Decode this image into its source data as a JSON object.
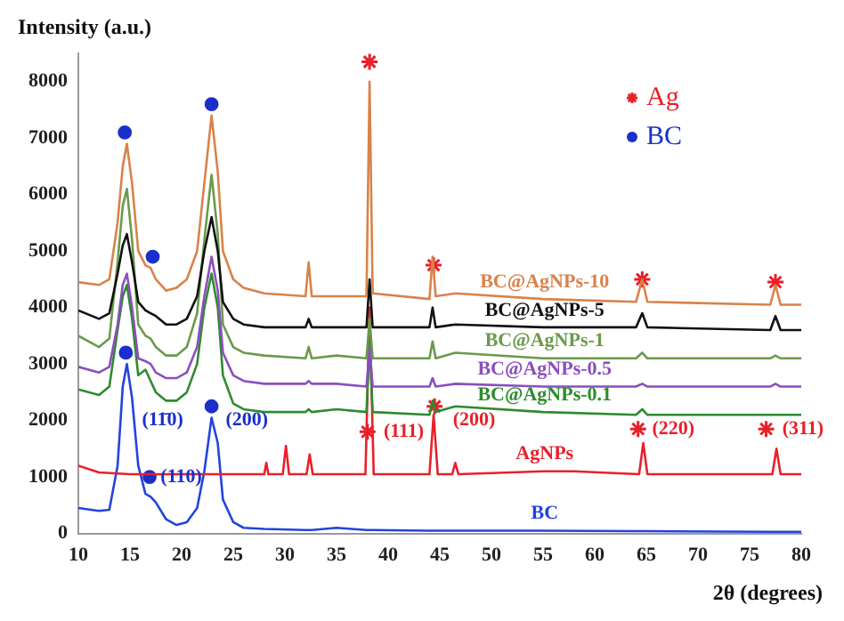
{
  "chart_data": {
    "type": "line",
    "xlabel": "2θ (degrees)",
    "ylabel": "Intensity (a.u.)",
    "xlim": [
      10,
      80
    ],
    "xticks": [
      10,
      15,
      20,
      25,
      30,
      35,
      40,
      45,
      50,
      55,
      60,
      65,
      70,
      75,
      80
    ],
    "ylim": [
      0,
      8500
    ],
    "yticks": [
      0,
      1000,
      2000,
      3000,
      4000,
      5000,
      6000,
      7000,
      8000
    ],
    "grid": false,
    "legend": "top right",
    "x": [
      10,
      12,
      13,
      13.8,
      14.3,
      14.7,
      15.2,
      15.8,
      16.5,
      17,
      17.5,
      18.5,
      19.5,
      20.5,
      21.5,
      22.2,
      22.9,
      23.5,
      24,
      25,
      26,
      28,
      32,
      32.3,
      32.6,
      35,
      37.9,
      38.2,
      38.5,
      44,
      44.3,
      44.6,
      46.5,
      55,
      64,
      64.6,
      65.1,
      77,
      77.5,
      78,
      80
    ],
    "series": [
      {
        "name": "BC@AgNPs-10",
        "color": "#d9824a",
        "marker": "none",
        "values": [
          4450,
          4400,
          4500,
          5500,
          6500,
          6900,
          6200,
          5000,
          4750,
          4700,
          4500,
          4300,
          4350,
          4500,
          5000,
          6200,
          7400,
          6400,
          5000,
          4500,
          4350,
          4250,
          4200,
          4800,
          4200,
          4200,
          4200,
          8000,
          4250,
          4150,
          4900,
          4200,
          4250,
          4150,
          4100,
          4500,
          4100,
          4050,
          4400,
          4050,
          4050
        ]
      },
      {
        "name": "BC@AgNPs-5",
        "color": "#111111",
        "marker": "none",
        "values": [
          3950,
          3800,
          3900,
          4600,
          5100,
          5300,
          4800,
          4100,
          3950,
          3900,
          3850,
          3700,
          3700,
          3800,
          4200,
          5000,
          5600,
          5000,
          4100,
          3800,
          3700,
          3650,
          3650,
          3800,
          3650,
          3650,
          3650,
          4500,
          3650,
          3650,
          4000,
          3650,
          3700,
          3650,
          3650,
          3900,
          3650,
          3600,
          3850,
          3600,
          3600
        ]
      },
      {
        "name": "BC@AgNPs-1",
        "color": "#6b9a4b",
        "marker": "none",
        "values": [
          3500,
          3300,
          3450,
          4800,
          5800,
          6100,
          5200,
          3700,
          3500,
          3450,
          3300,
          3150,
          3150,
          3300,
          3900,
          5200,
          6350,
          5300,
          3700,
          3300,
          3200,
          3150,
          3100,
          3300,
          3100,
          3150,
          3100,
          3800,
          3100,
          3100,
          3400,
          3100,
          3200,
          3100,
          3100,
          3200,
          3100,
          3100,
          3150,
          3100,
          3100
        ]
      },
      {
        "name": "BC@AgNPs-0.5",
        "color": "#8a4fbf",
        "marker": "none",
        "values": [
          2950,
          2850,
          2950,
          3700,
          4400,
          4600,
          4000,
          3100,
          3050,
          3000,
          2850,
          2750,
          2750,
          2850,
          3300,
          4200,
          4900,
          4300,
          3200,
          2800,
          2700,
          2650,
          2650,
          2700,
          2650,
          2650,
          2600,
          3300,
          2600,
          2600,
          2750,
          2600,
          2650,
          2600,
          2600,
          2650,
          2600,
          2600,
          2650,
          2600,
          2600
        ]
      },
      {
        "name": "BC@AgNPs-0.1",
        "color": "#2e8b2e",
        "marker": "none",
        "values": [
          2550,
          2450,
          2600,
          3600,
          4200,
          4400,
          3800,
          2800,
          2900,
          2700,
          2500,
          2350,
          2350,
          2500,
          3000,
          4000,
          4600,
          4000,
          2800,
          2300,
          2200,
          2150,
          2150,
          2200,
          2150,
          2200,
          2150,
          3400,
          2150,
          2100,
          2350,
          2150,
          2250,
          2150,
          2100,
          2200,
          2100,
          2100,
          2100,
          2100,
          2100
        ]
      },
      {
        "name": "AgNPs",
        "color": "#e8202a",
        "marker": "none",
        "x": [
          10,
          12,
          15,
          20,
          27,
          28,
          28.2,
          28.4,
          29.8,
          30.1,
          30.4,
          32.1,
          32.4,
          32.7,
          37.8,
          38.2,
          38.6,
          44,
          44.4,
          44.8,
          46.2,
          46.5,
          46.8,
          55,
          58,
          64.3,
          64.7,
          65.1,
          77.2,
          77.6,
          78,
          80
        ],
        "values": [
          1200,
          1080,
          1050,
          1050,
          1050,
          1050,
          1250,
          1050,
          1050,
          1550,
          1050,
          1050,
          1400,
          1050,
          1050,
          4000,
          1050,
          1050,
          2100,
          1050,
          1050,
          1250,
          1050,
          1100,
          1100,
          1050,
          1600,
          1050,
          1050,
          1500,
          1050,
          1050
        ]
      },
      {
        "name": "BC",
        "color": "#2244dd",
        "marker": "none",
        "values": [
          450,
          400,
          420,
          1200,
          2600,
          3000,
          2400,
          1200,
          700,
          650,
          550,
          250,
          150,
          200,
          450,
          1100,
          2050,
          1600,
          600,
          200,
          100,
          80,
          60,
          60,
          60,
          100,
          60,
          60,
          60,
          50,
          50,
          50,
          50,
          50,
          40,
          40,
          40,
          30,
          30,
          30,
          30
        ]
      },
      {
        "name": "Ag",
        "type": "scatter",
        "color": "#e8202a",
        "marker": "cross",
        "x": [
          38.2,
          44.4,
          64.6,
          77.5,
          38.0,
          44.5,
          64.2,
          76.6
        ],
        "values": [
          8350,
          4750,
          4500,
          4450,
          1800,
          2250,
          1850,
          1850
        ]
      },
      {
        "name": "BC",
        "type": "scatter",
        "color": "#1a2fcc",
        "marker": "circle",
        "x": [
          14.5,
          22.9,
          17.2,
          14.6,
          22.9,
          16.9
        ],
        "values": [
          7100,
          7600,
          4900,
          3200,
          2250,
          1000
        ]
      }
    ],
    "annotations": [
      {
        "text": "(11̄0)",
        "x": 15.3,
        "y": 2000
      },
      {
        "text": "(200)",
        "x": 23.4,
        "y": 2000
      },
      {
        "text": "(110)",
        "x": 17.1,
        "y": 1000
      },
      {
        "text": "(111)",
        "x": 38.7,
        "y": 1800
      },
      {
        "text": "(200)",
        "x": 45.4,
        "y": 2000
      },
      {
        "text": "(220)",
        "x": 64.7,
        "y": 1850
      },
      {
        "text": "(311)",
        "x": 77.3,
        "y": 1850
      }
    ]
  }
}
